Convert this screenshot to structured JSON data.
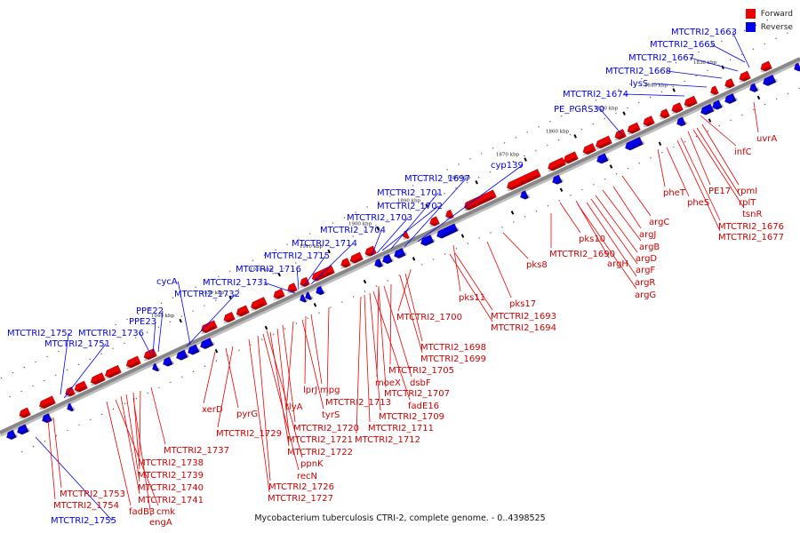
{
  "colors": {
    "forward": "#ee0000",
    "reverse": "#0000ee",
    "backbone": "#888888"
  },
  "legend": {
    "forward": "Forward",
    "reverse": "Reverse"
  },
  "caption": "Mycobacterium tuberculosis CTRI-2, complete genome. - 0..4398525",
  "ticks": [
    "1830 kbp",
    "1840 kbp",
    "1850 kbp",
    "1860 kbp",
    "1870 kbp",
    "1880 kbp",
    "1890 kbp",
    "1900 kbp",
    "1910 kbp",
    "1920 kbp",
    "1930 kbp",
    "1940 kbp"
  ],
  "reverse_labels": [
    "MTCTRI2_1663",
    "MTCTRI2_1665",
    "MTCTRI2_1667",
    "MTCTRI2_1668",
    "lysS",
    "MTCTRI2_1674",
    "PE_PGRS30",
    "cyp139",
    "MTCTRI2_1697",
    "MTCTRI2_1701",
    "MTCTRI2_1702",
    "MTCTRI2_1703",
    "MTCTRI2_1704",
    "MTCTRI2_1714",
    "MTCTRI2_1715",
    "MTCTRI2_1716",
    "MTCTRI2_1731",
    "cycA",
    "MTCTRI2_1732",
    "PPE22",
    "PPE23",
    "MTCTRI2_1736",
    "MTCTRI2_1752",
    "MTCTRI2_1751",
    "MTCTRI2_1755"
  ],
  "forward_labels": [
    "uvrA",
    "infC",
    "rpmI",
    "rplT",
    "tsnR",
    "PE17",
    "pheT",
    "pheS",
    "MTCTRI2_1676",
    "MTCTRI2_1677",
    "argC",
    "argJ",
    "argB",
    "argD",
    "argF",
    "argR",
    "argG",
    "argH",
    "pks10",
    "MTCTRI2_1690",
    "pks8",
    "pks17",
    "pks11",
    "MTCTRI2_1693",
    "MTCTRI2_1694",
    "MTCTRI2_1700",
    "MTCTRI2_1698",
    "MTCTRI2_1699",
    "MTCTRI2_1705",
    "moeX",
    "dsbF",
    "MTCTRI2_1707",
    "fadE16",
    "MTCTRI2_1709",
    "MTCTRI2_1711",
    "MTCTRI2_1712",
    "MTCTRI2_1713",
    "lprJ",
    "mpg",
    "tlyA",
    "tyrS",
    "MTCTRI2_1720",
    "MTCTRI2_1721",
    "MTCTRI2_1722",
    "ppnK",
    "recN",
    "MTCTRI2_1726",
    "MTCTRI2_1727",
    "MTCTRI2_1729",
    "pyrG",
    "xerD",
    "MTCTRI2_1737",
    "MTCTRI2_1738",
    "MTCTRI2_1739",
    "MTCTRI2_1740",
    "MTCTRI2_1741",
    "MTCTRI2_1753",
    "MTCTRI2_1754",
    "fadB3",
    "cmk",
    "engA"
  ]
}
